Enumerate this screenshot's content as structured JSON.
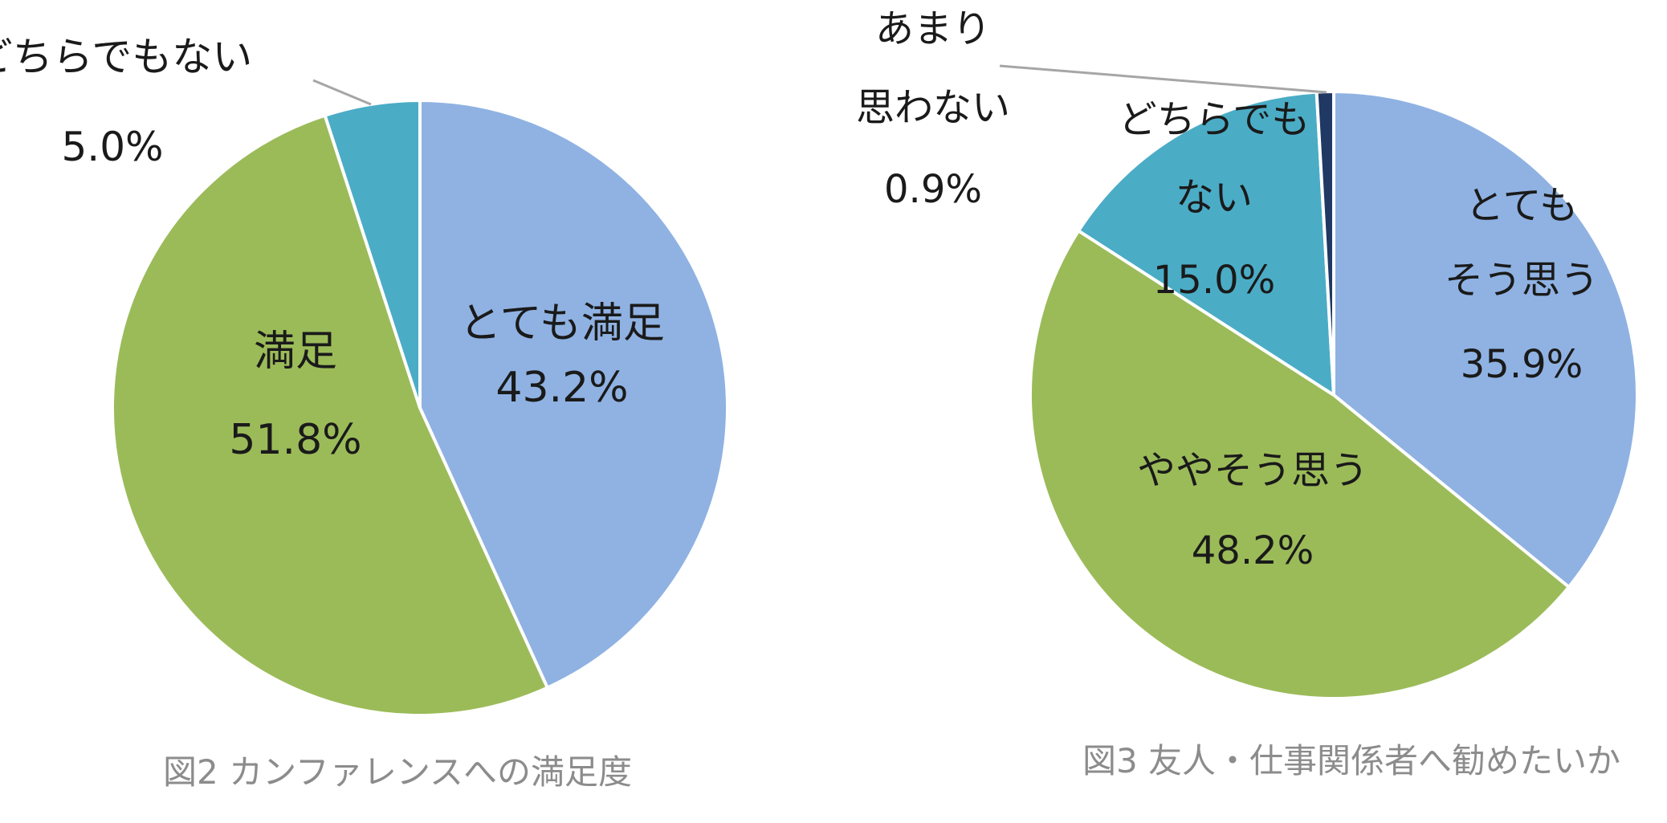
{
  "chart_data": [
    {
      "type": "pie",
      "title": "図2 カンファレンスへの満足度",
      "slices": [
        {
          "label": "とても満足",
          "value": 43.2,
          "value_label": "43.2%",
          "color": "#8fb2e2"
        },
        {
          "label": "満足",
          "value": 51.8,
          "value_label": "51.8%",
          "color": "#9bbb59"
        },
        {
          "label": "どちらでもない",
          "value": 5.0,
          "value_label": "5.0%",
          "color": "#4bacc6"
        }
      ]
    },
    {
      "type": "pie",
      "title": "図3 友人・仕事関係者へ勧めたいか",
      "slices": [
        {
          "label": "とても\nそう思う",
          "value": 35.9,
          "value_label": "35.9%",
          "color": "#8fb2e2"
        },
        {
          "label": "ややそう思う",
          "value": 48.2,
          "value_label": "48.2%",
          "color": "#9bbb59"
        },
        {
          "label": "どちらでも\nない",
          "value": 15.0,
          "value_label": "15.0%",
          "color": "#4bacc6"
        },
        {
          "label": "あまり\n思わない",
          "value": 0.9,
          "value_label": "0.9%",
          "color": "#1f3864"
        }
      ]
    }
  ]
}
